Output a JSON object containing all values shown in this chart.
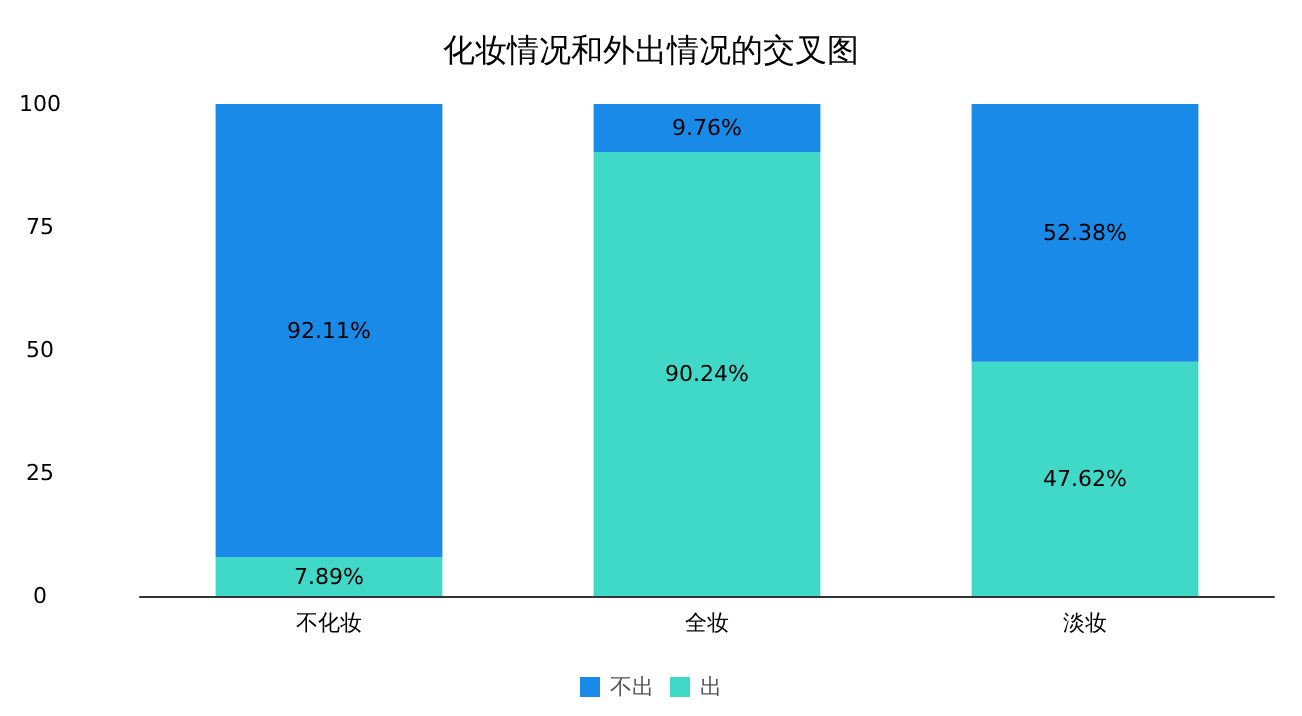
{
  "chart_data": {
    "type": "bar",
    "title": "化妆情况和外出情况的交叉图",
    "categories": [
      "不化妆",
      "全妆",
      "淡妆"
    ],
    "stacked": true,
    "series": [
      {
        "name": "出",
        "color": "#40d9c7",
        "values": [
          7.89,
          90.24,
          47.62
        ],
        "value_labels": [
          "7.89%",
          "90.24%",
          "47.62%"
        ]
      },
      {
        "name": "不出",
        "color": "#1a8ae8",
        "values": [
          92.11,
          9.76,
          52.38
        ],
        "value_labels": [
          "92.11%",
          "9.76%",
          "52.38%"
        ]
      }
    ],
    "ylim": [
      0,
      100
    ],
    "yticks": [
      0,
      25,
      50,
      75,
      100
    ],
    "grid": false,
    "legend": "bottom"
  }
}
